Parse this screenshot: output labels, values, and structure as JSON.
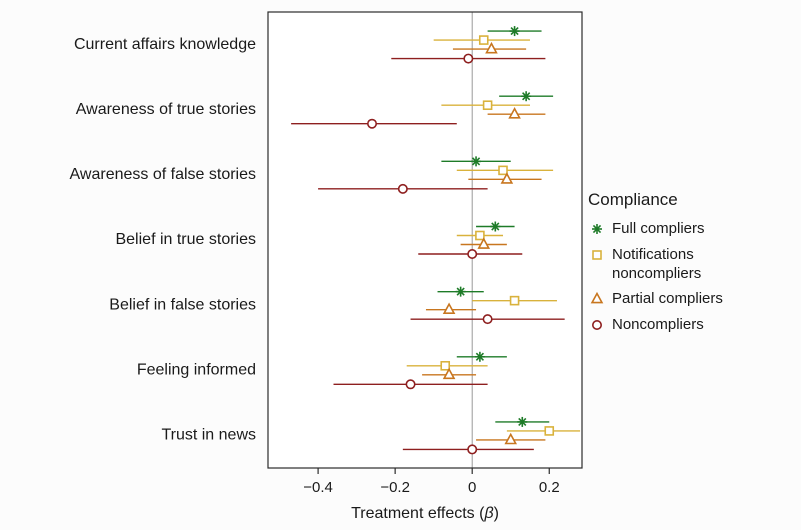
{
  "chart_data": {
    "type": "forest",
    "xlabel": "Treatment effects (β)",
    "xlim": [
      -0.53,
      0.285
    ],
    "xticks": [
      -0.4,
      -0.2,
      0,
      0.2
    ],
    "xtick_labels": [
      "−0.4",
      "−0.2",
      "0",
      "0.2"
    ],
    "zero_line": 0,
    "legend_title": "Compliance",
    "grid": "off",
    "legend_position": "right",
    "categories": [
      "Current affairs knowledge",
      "Awareness of true stories",
      "Awareness of false stories",
      "Belief in true stories",
      "Belief in false stories",
      "Feeling informed",
      "Trust in news"
    ],
    "series": [
      {
        "name": "Full compliers",
        "marker": "asterisk",
        "color": "#1e7b28",
        "points": [
          {
            "est": 0.11,
            "lo": 0.04,
            "hi": 0.18
          },
          {
            "est": 0.14,
            "lo": 0.07,
            "hi": 0.21
          },
          {
            "est": 0.01,
            "lo": -0.08,
            "hi": 0.1
          },
          {
            "est": 0.06,
            "lo": 0.01,
            "hi": 0.11
          },
          {
            "est": -0.03,
            "lo": -0.09,
            "hi": 0.03
          },
          {
            "est": 0.02,
            "lo": -0.04,
            "hi": 0.09
          },
          {
            "est": 0.13,
            "lo": 0.06,
            "hi": 0.2
          }
        ]
      },
      {
        "name": "Notifications noncompliers",
        "marker": "square",
        "color": "#d9b23c",
        "points": [
          {
            "est": 0.03,
            "lo": -0.1,
            "hi": 0.15
          },
          {
            "est": 0.04,
            "lo": -0.08,
            "hi": 0.15
          },
          {
            "est": 0.08,
            "lo": -0.04,
            "hi": 0.21
          },
          {
            "est": 0.02,
            "lo": -0.04,
            "hi": 0.08
          },
          {
            "est": 0.11,
            "lo": 0.0,
            "hi": 0.22
          },
          {
            "est": -0.07,
            "lo": -0.17,
            "hi": 0.04
          },
          {
            "est": 0.2,
            "lo": 0.09,
            "hi": 0.28
          }
        ]
      },
      {
        "name": "Partial compliers",
        "marker": "triangle",
        "color": "#c8761f",
        "points": [
          {
            "est": 0.05,
            "lo": -0.05,
            "hi": 0.14
          },
          {
            "est": 0.11,
            "lo": 0.04,
            "hi": 0.19
          },
          {
            "est": 0.09,
            "lo": -0.01,
            "hi": 0.18
          },
          {
            "est": 0.03,
            "lo": -0.03,
            "hi": 0.09
          },
          {
            "est": -0.06,
            "lo": -0.12,
            "hi": 0.01
          },
          {
            "est": -0.06,
            "lo": -0.13,
            "hi": 0.01
          },
          {
            "est": 0.1,
            "lo": 0.01,
            "hi": 0.19
          }
        ]
      },
      {
        "name": "Noncompliers",
        "marker": "circle",
        "color": "#8e1f1f",
        "points": [
          {
            "est": -0.01,
            "lo": -0.21,
            "hi": 0.19
          },
          {
            "est": -0.26,
            "lo": -0.47,
            "hi": -0.04
          },
          {
            "est": -0.18,
            "lo": -0.4,
            "hi": 0.04
          },
          {
            "est": 0.0,
            "lo": -0.14,
            "hi": 0.13
          },
          {
            "est": 0.04,
            "lo": -0.16,
            "hi": 0.24
          },
          {
            "est": -0.16,
            "lo": -0.36,
            "hi": 0.04
          },
          {
            "est": 0.0,
            "lo": -0.18,
            "hi": 0.16
          }
        ]
      }
    ]
  }
}
